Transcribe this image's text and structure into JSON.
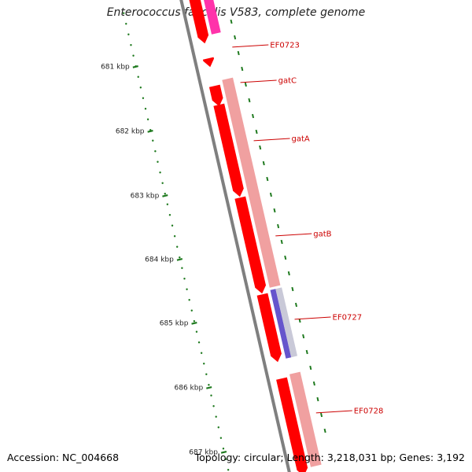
{
  "header": {
    "title": "Enterococcus faecalis V583, complete genome"
  },
  "footer": {
    "accession": "Accession: NC_004668",
    "summary": "Topology: circular; Length: 3,218,031 bp; Genes: 3,192"
  },
  "colors": {
    "backbone": "#7f7f7f",
    "forward_cds": "#ff0000",
    "reverse_cds": "#f0a0a0",
    "pseudo_gene": "#ff33aa",
    "rna_gene": "#6655cc",
    "tick": "#1f7a1f",
    "gene_label": "#cc0000"
  },
  "scale_labels": [
    "681 kbp",
    "682 kbp",
    "683 kbp",
    "684 kbp",
    "685 kbp",
    "686 kbp",
    "687 kbp"
  ],
  "genes": [
    {
      "name": "EF0723"
    },
    {
      "name": "gatC"
    },
    {
      "name": "gatA"
    },
    {
      "name": "gatB"
    },
    {
      "name": "EF0727"
    },
    {
      "name": "EF0728"
    }
  ]
}
